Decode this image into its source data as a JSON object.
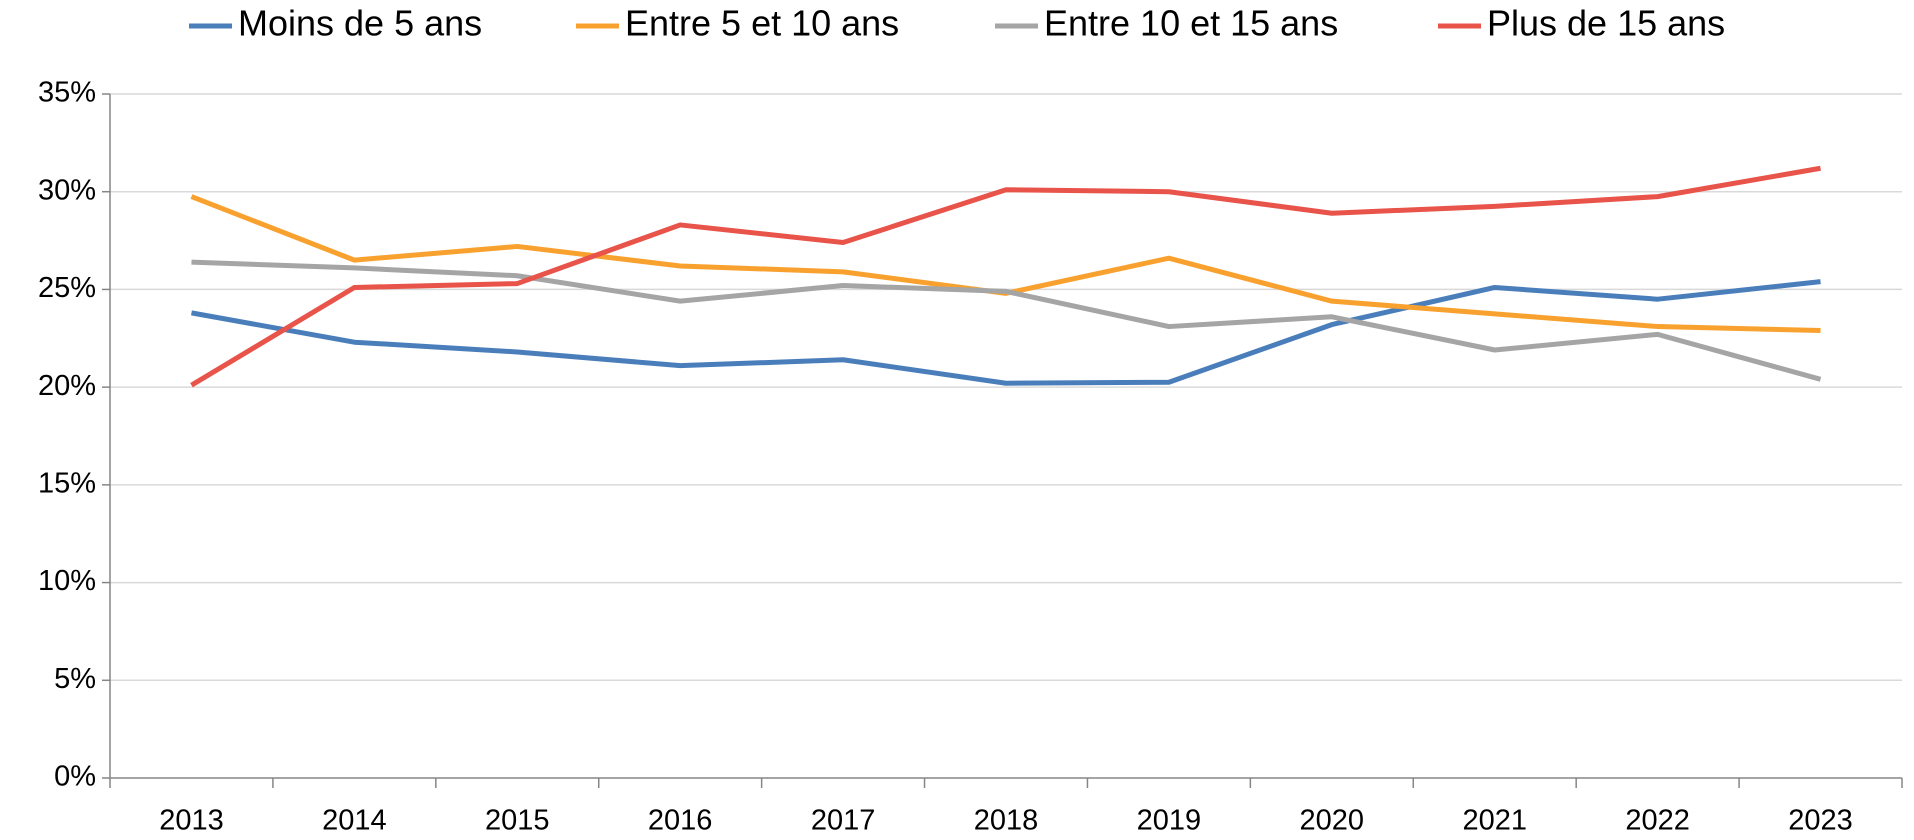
{
  "chart_data": {
    "type": "line",
    "categories": [
      "2013",
      "2014",
      "2015",
      "2016",
      "2017",
      "2018",
      "2019",
      "2020",
      "2021",
      "2022",
      "2023"
    ],
    "series": [
      {
        "name": "Moins de 5 ans",
        "color": "#4a7ebb",
        "values": [
          23.8,
          22.3,
          21.8,
          21.1,
          21.4,
          20.2,
          20.25,
          23.2,
          25.1,
          24.5,
          25.4
        ]
      },
      {
        "name": "Entre 5 et 10 ans",
        "color": "#f9a12f",
        "values": [
          29.75,
          26.5,
          27.2,
          26.2,
          25.9,
          24.8,
          26.6,
          24.4,
          23.75,
          23.1,
          22.9
        ]
      },
      {
        "name": "Entre 10 et 15 ans",
        "color": "#a5a5a5",
        "values": [
          26.4,
          26.1,
          25.7,
          24.4,
          25.2,
          24.9,
          23.1,
          23.6,
          21.9,
          22.7,
          20.4
        ]
      },
      {
        "name": "Plus de 15 ans",
        "color": "#e8534a",
        "values": [
          20.1,
          25.1,
          25.3,
          28.3,
          27.4,
          30.1,
          30.0,
          28.9,
          29.25,
          29.75,
          31.2
        ]
      }
    ],
    "ylim": [
      0,
      35
    ],
    "yticks": [
      {
        "value": 0,
        "label": "0%"
      },
      {
        "value": 5,
        "label": "5%"
      },
      {
        "value": 10,
        "label": "10%"
      },
      {
        "value": 15,
        "label": "15%"
      },
      {
        "value": 20,
        "label": "20%"
      },
      {
        "value": 25,
        "label": "25%"
      },
      {
        "value": 30,
        "label": "30%"
      },
      {
        "value": 35,
        "label": "35%"
      }
    ],
    "grid": true,
    "legend": "top"
  }
}
